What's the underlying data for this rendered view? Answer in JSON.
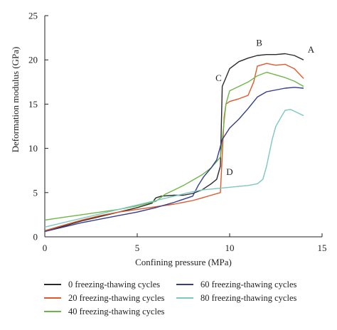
{
  "chart_data": {
    "type": "line",
    "xlabel": "Confining pressure (MPa)",
    "ylabel": "Deformation modulus (GPa)",
    "xlim": [
      0,
      15
    ],
    "ylim": [
      0,
      25
    ],
    "xticks": [
      0,
      5,
      10,
      15
    ],
    "yticks": [
      0,
      5,
      10,
      15,
      20,
      25
    ],
    "grid": false,
    "legend_position": "bottom",
    "series": [
      {
        "name": "0 freezing-thawing cycles",
        "color": "#2a2a2a",
        "x": [
          0,
          1,
          2,
          3,
          4,
          5,
          5.8,
          6.0,
          6.3,
          7,
          7.5,
          8,
          8.5,
          9,
          9.3,
          9.5,
          9.6,
          9.8,
          10,
          10.5,
          11,
          11.5,
          12,
          12.5,
          13,
          13.5,
          14
        ],
        "y": [
          0.6,
          1.2,
          1.8,
          2.3,
          2.8,
          3.3,
          3.8,
          4.4,
          4.6,
          4.7,
          4.7,
          4.9,
          5.3,
          6.0,
          6.5,
          8.0,
          17.0,
          18.0,
          19.0,
          19.8,
          20.2,
          20.5,
          20.6,
          20.6,
          20.7,
          20.5,
          20.0
        ]
      },
      {
        "name": "20 freezing-thawing cycles",
        "color": "#e2582b",
        "x": [
          0,
          1,
          2,
          3,
          4,
          5,
          6,
          7,
          8,
          8.5,
          9,
          9.5,
          9.7,
          9.8,
          10,
          10.5,
          11,
          11.3,
          11.5,
          12,
          12.5,
          13,
          13.5,
          14
        ],
        "y": [
          0.7,
          1.3,
          1.9,
          2.4,
          2.8,
          3.1,
          3.4,
          3.7,
          4.1,
          4.4,
          4.7,
          5.0,
          13.5,
          15.0,
          15.3,
          15.6,
          16.0,
          17.5,
          19.3,
          19.6,
          19.4,
          19.5,
          19.0,
          17.9
        ]
      },
      {
        "name": "40 freezing-thawing cycles",
        "color": "#6db64a",
        "x": [
          0,
          1,
          2,
          3,
          4,
          5,
          6,
          6.5,
          7,
          7.5,
          8,
          8.5,
          9,
          9.5,
          9.8,
          10,
          10.5,
          11,
          11.5,
          12,
          12.5,
          13,
          13.5,
          14
        ],
        "y": [
          1.9,
          2.2,
          2.5,
          2.8,
          3.1,
          3.5,
          4.0,
          4.8,
          5.3,
          5.8,
          6.4,
          7.0,
          7.8,
          9.0,
          15.0,
          16.5,
          17.0,
          17.5,
          18.2,
          18.6,
          18.3,
          18.0,
          17.6,
          17.0
        ]
      },
      {
        "name": "60 freezing-thawing cycles",
        "color": "#333d8f",
        "x": [
          0,
          1,
          2,
          3,
          4,
          5,
          6,
          7,
          8,
          8.3,
          8.6,
          9,
          9.3,
          9.6,
          10,
          10.5,
          11,
          11.5,
          12,
          12.5,
          13,
          13.5,
          14
        ],
        "y": [
          0.6,
          1.1,
          1.6,
          2.0,
          2.4,
          2.8,
          3.3,
          3.9,
          4.6,
          5.8,
          6.8,
          7.8,
          8.7,
          11.0,
          12.3,
          13.3,
          14.5,
          15.8,
          16.4,
          16.6,
          16.8,
          16.9,
          16.8
        ]
      },
      {
        "name": "80 freezing-thawing cycles",
        "color": "#7cc8c0",
        "x": [
          0,
          1,
          2,
          3,
          4,
          5,
          6,
          7,
          8,
          8.5,
          9,
          9.5,
          10,
          10.5,
          11,
          11.5,
          11.8,
          12,
          12.3,
          12.5,
          12.8,
          13,
          13.3,
          13.6,
          14
        ],
        "y": [
          1.1,
          1.6,
          2.1,
          2.6,
          3.1,
          3.6,
          4.1,
          4.6,
          5.1,
          5.3,
          5.4,
          5.5,
          5.6,
          5.7,
          5.8,
          6.0,
          6.5,
          8.0,
          11.0,
          12.5,
          13.6,
          14.3,
          14.4,
          14.1,
          13.7
        ]
      }
    ],
    "annotations": [
      {
        "text": "A",
        "x": 14.4,
        "y": 20.8
      },
      {
        "text": "B",
        "x": 11.6,
        "y": 21.6
      },
      {
        "text": "C",
        "x": 9.4,
        "y": 17.6
      },
      {
        "text": "D",
        "x": 10.0,
        "y": 7.0
      }
    ]
  }
}
